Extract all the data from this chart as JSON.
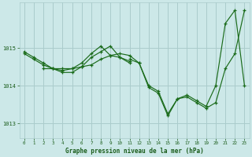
{
  "title": "Graphe pression niveau de la mer (hPa)",
  "bg_color": "#cce8e8",
  "grid_color": "#aacccc",
  "line_color": "#1a6b1a",
  "xlabel_color": "#1a5c1a",
  "ylabel_color": "#1a5c1a",
  "xlim": [
    -0.5,
    23.5
  ],
  "ylim": [
    1012.6,
    1016.2
  ],
  "yticks": [
    1013,
    1014,
    1015
  ],
  "xticks": [
    0,
    1,
    2,
    3,
    4,
    5,
    6,
    7,
    8,
    9,
    10,
    11,
    12,
    13,
    14,
    15,
    16,
    17,
    18,
    19,
    20,
    21,
    22,
    23
  ],
  "series": [
    {
      "x": [
        0,
        1,
        2,
        3,
        4,
        5,
        6,
        7,
        8,
        9,
        10,
        11,
        12,
        13,
        14,
        15,
        16,
        17,
        18,
        19,
        20,
        21,
        22,
        23
      ],
      "y": [
        1014.9,
        1014.75,
        1014.6,
        1014.45,
        1014.45,
        1014.45,
        1014.5,
        1014.55,
        1014.7,
        1014.8,
        1014.85,
        1014.8,
        1014.6,
        1013.95,
        1013.8,
        1013.2,
        1013.65,
        1013.7,
        1013.55,
        1013.4,
        1013.55,
        1014.45,
        1014.85,
        1016.0
      ]
    },
    {
      "x": [
        0,
        1,
        2,
        3,
        4,
        5,
        6,
        7,
        8,
        9,
        10,
        11
      ],
      "y": [
        1014.85,
        1014.7,
        1014.55,
        1014.45,
        1014.4,
        1014.45,
        1014.6,
        1014.85,
        1015.05,
        1014.8,
        1014.75,
        1014.6
      ]
    },
    {
      "x": [
        2,
        3,
        4,
        5,
        6,
        7,
        8,
        9,
        10,
        11
      ],
      "y": [
        1014.45,
        1014.45,
        1014.35,
        1014.35,
        1014.5,
        1014.75,
        1014.9,
        1015.05,
        1014.75,
        1014.65
      ]
    },
    {
      "x": [
        11,
        12,
        13,
        14,
        15,
        16,
        17,
        18,
        19,
        20,
        21,
        22,
        23
      ],
      "y": [
        1014.7,
        1014.6,
        1014.0,
        1013.85,
        1013.25,
        1013.65,
        1013.75,
        1013.6,
        1013.45,
        1014.0,
        1015.65,
        1016.0,
        1014.0
      ]
    }
  ]
}
